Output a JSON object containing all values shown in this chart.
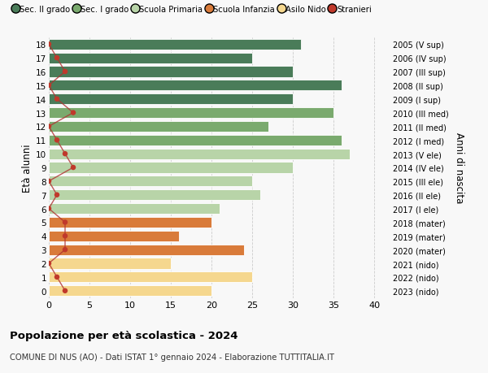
{
  "ages": [
    18,
    17,
    16,
    15,
    14,
    13,
    12,
    11,
    10,
    9,
    8,
    7,
    6,
    5,
    4,
    3,
    2,
    1,
    0
  ],
  "years": [
    "2005 (V sup)",
    "2006 (IV sup)",
    "2007 (III sup)",
    "2008 (II sup)",
    "2009 (I sup)",
    "2010 (III med)",
    "2011 (II med)",
    "2012 (I med)",
    "2013 (V ele)",
    "2014 (IV ele)",
    "2015 (III ele)",
    "2016 (II ele)",
    "2017 (I ele)",
    "2018 (mater)",
    "2019 (mater)",
    "2020 (mater)",
    "2021 (nido)",
    "2022 (nido)",
    "2023 (nido)"
  ],
  "bar_values": [
    31,
    25,
    30,
    36,
    30,
    35,
    27,
    36,
    37,
    30,
    25,
    26,
    21,
    20,
    16,
    24,
    15,
    25,
    20
  ],
  "bar_colors": [
    "#4a7c59",
    "#4a7c59",
    "#4a7c59",
    "#4a7c59",
    "#4a7c59",
    "#7aaa6e",
    "#7aaa6e",
    "#7aaa6e",
    "#b8d4a8",
    "#b8d4a8",
    "#b8d4a8",
    "#b8d4a8",
    "#b8d4a8",
    "#d97b3a",
    "#d97b3a",
    "#d97b3a",
    "#f5d78e",
    "#f5d78e",
    "#f5d78e"
  ],
  "stranieri_x": [
    0,
    1,
    2,
    0,
    1,
    3,
    0,
    1,
    2,
    3,
    0,
    1,
    0,
    2,
    2,
    2,
    0,
    1,
    2
  ],
  "legend_labels": [
    "Sec. II grado",
    "Sec. I grado",
    "Scuola Primaria",
    "Scuola Infanzia",
    "Asilo Nido",
    "Stranieri"
  ],
  "legend_colors": [
    "#4a7c59",
    "#7aaa6e",
    "#b8d4a8",
    "#d97b3a",
    "#f5d78e",
    "#c0392b"
  ],
  "title": "Popolazione per età scolastica - 2024",
  "subtitle": "COMUNE DI NUS (AO) - Dati ISTAT 1° gennaio 2024 - Elaborazione TUTTITALIA.IT",
  "ylabel_left": "Età alunni",
  "ylabel_right": "Anni di nascita",
  "bg_color": "#f8f8f8",
  "grid_color": "#cccccc",
  "xlim": [
    0,
    42
  ],
  "bar_height": 0.78
}
